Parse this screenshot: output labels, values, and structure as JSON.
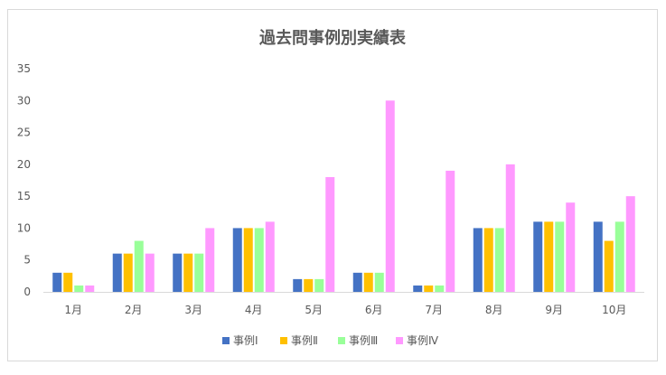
{
  "chart_data": {
    "type": "bar",
    "title": "過去問事例別実績表",
    "xlabel": "",
    "ylabel": "",
    "categories": [
      "1月",
      "2月",
      "3月",
      "4月",
      "5月",
      "6月",
      "7月",
      "8月",
      "9月",
      "10月"
    ],
    "ylim": [
      0,
      35
    ],
    "yticks": [
      0,
      5,
      10,
      15,
      20,
      25,
      30,
      35
    ],
    "grid": false,
    "legend_position": "bottom",
    "series": [
      {
        "name": "事例Ⅰ",
        "color": "#4472C4",
        "values": [
          3,
          6,
          6,
          10,
          2,
          3,
          1,
          10,
          11,
          11
        ]
      },
      {
        "name": "事例Ⅱ",
        "color": "#FFC000",
        "values": [
          3,
          6,
          6,
          10,
          2,
          3,
          1,
          10,
          11,
          8
        ]
      },
      {
        "name": "事例Ⅲ",
        "color": "#99FF99",
        "values": [
          1,
          8,
          6,
          10,
          2,
          3,
          1,
          10,
          11,
          11
        ]
      },
      {
        "name": "事例Ⅳ",
        "color": "#FF99FF",
        "values": [
          1,
          6,
          10,
          11,
          18,
          30,
          19,
          20,
          14,
          15
        ]
      }
    ]
  }
}
